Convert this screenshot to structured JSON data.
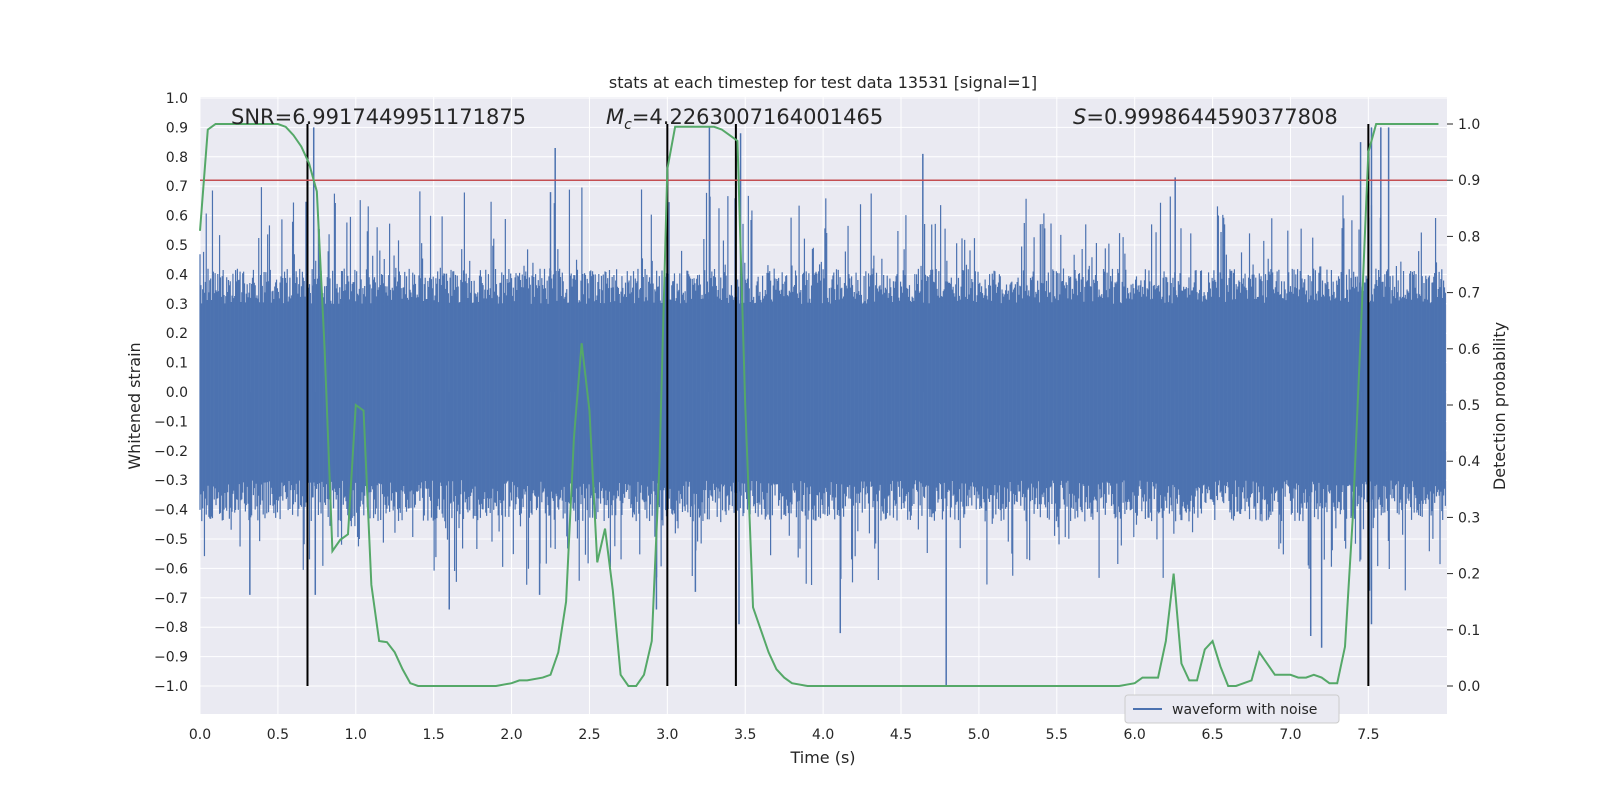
{
  "chart_data": {
    "type": "line",
    "title": "stats at each timestep for test data 13531 [signal=1]",
    "xlabel": "Time (s)",
    "ylabel": "Whitened strain",
    "y2label": "Detection probability",
    "xlim": [
      0.0,
      8.0
    ],
    "ylim": [
      -1.0,
      1.0
    ],
    "y2lim": [
      0.0,
      1.0
    ],
    "xticks": [
      "0.0",
      "0.5",
      "1.0",
      "1.5",
      "2.0",
      "2.5",
      "3.0",
      "3.5",
      "4.0",
      "4.5",
      "5.0",
      "5.5",
      "6.0",
      "6.5",
      "7.0",
      "7.5"
    ],
    "yticks": [
      "1.0",
      "0.9",
      "0.8",
      "0.7",
      "0.6",
      "0.5",
      "0.4",
      "0.3",
      "0.2",
      "0.1",
      "0.0",
      "−0.1",
      "−0.2",
      "−0.3",
      "−0.4",
      "−0.5",
      "−0.6",
      "−0.7",
      "−0.8",
      "−0.9",
      "−1.0"
    ],
    "y2ticks": [
      "1.0",
      "0.9",
      "0.8",
      "0.7",
      "0.6",
      "0.5",
      "0.4",
      "0.3",
      "0.2",
      "0.1",
      "0.0"
    ],
    "grid": true,
    "legend": {
      "entry": "waveform with noise",
      "placement": "lower-center-right"
    },
    "annotations": {
      "snr": "SNR=6.9917449951171875",
      "mc_symbol": "M",
      "mc_sub": "c",
      "mc_value": "=4.2263007164001465",
      "s_symbol": "S",
      "s_value": "=0.9998644590377808"
    },
    "threshold": 0.9,
    "vertical_lines_x": [
      0.69,
      3.0,
      3.44,
      7.5
    ],
    "probability_series": {
      "name": "",
      "x": [
        0.0,
        0.05,
        0.1,
        0.2,
        0.3,
        0.4,
        0.5,
        0.55,
        0.6,
        0.65,
        0.7,
        0.75,
        0.8,
        0.85,
        0.9,
        0.95,
        1.0,
        1.05,
        1.1,
        1.15,
        1.2,
        1.25,
        1.3,
        1.35,
        1.4,
        1.45,
        1.5,
        1.6,
        1.7,
        1.8,
        1.9,
        2.0,
        2.05,
        2.1,
        2.2,
        2.25,
        2.3,
        2.35,
        2.4,
        2.45,
        2.5,
        2.55,
        2.6,
        2.65,
        2.7,
        2.75,
        2.8,
        2.85,
        2.9,
        2.95,
        3.0,
        3.05,
        3.1,
        3.15,
        3.2,
        3.3,
        3.35,
        3.4,
        3.45,
        3.5,
        3.55,
        3.6,
        3.65,
        3.7,
        3.75,
        3.8,
        3.9,
        4.0,
        4.5,
        5.0,
        5.5,
        5.9,
        6.0,
        6.05,
        6.1,
        6.15,
        6.2,
        6.25,
        6.3,
        6.35,
        6.4,
        6.45,
        6.5,
        6.55,
        6.6,
        6.65,
        6.7,
        6.75,
        6.8,
        6.85,
        6.9,
        6.95,
        7.0,
        7.05,
        7.1,
        7.15,
        7.2,
        7.25,
        7.3,
        7.35,
        7.4,
        7.45,
        7.5,
        7.55,
        7.6,
        7.65,
        7.7,
        7.8,
        7.9,
        7.95
      ],
      "y": [
        0.81,
        0.99,
        1.0,
        1.0,
        1.0,
        1.0,
        1.0,
        0.995,
        0.98,
        0.96,
        0.93,
        0.88,
        0.6,
        0.24,
        0.26,
        0.27,
        0.5,
        0.49,
        0.18,
        0.08,
        0.078,
        0.06,
        0.03,
        0.005,
        0.0,
        0.0,
        0.0,
        0.0,
        0.0,
        0.0,
        0.0,
        0.005,
        0.01,
        0.01,
        0.015,
        0.02,
        0.06,
        0.15,
        0.44,
        0.61,
        0.49,
        0.22,
        0.28,
        0.17,
        0.02,
        0.0,
        0.0,
        0.02,
        0.08,
        0.4,
        0.92,
        0.995,
        0.995,
        0.995,
        0.995,
        0.995,
        0.99,
        0.98,
        0.97,
        0.5,
        0.14,
        0.1,
        0.06,
        0.03,
        0.015,
        0.005,
        0.0,
        0.0,
        0.0,
        0.0,
        0.0,
        0.0,
        0.005,
        0.015,
        0.015,
        0.015,
        0.08,
        0.2,
        0.04,
        0.01,
        0.01,
        0.065,
        0.08,
        0.035,
        0.0,
        0.0,
        0.005,
        0.01,
        0.06,
        0.04,
        0.02,
        0.02,
        0.02,
        0.015,
        0.015,
        0.02,
        0.015,
        0.005,
        0.005,
        0.07,
        0.3,
        0.62,
        0.95,
        1.0,
        1.0,
        1.0,
        1.0,
        1.0,
        1.0,
        1.0
      ]
    },
    "waveform_series": {
      "name": "waveform with noise",
      "typical_amplitude": 0.3,
      "spikes": [
        {
          "x": 0.69,
          "y": 0.74
        },
        {
          "x": 0.73,
          "y": 0.9
        },
        {
          "x": 2.28,
          "y": 0.83
        },
        {
          "x": 2.25,
          "y": 0.68
        },
        {
          "x": 3.27,
          "y": 0.9
        },
        {
          "x": 3.47,
          "y": 0.88
        },
        {
          "x": 4.64,
          "y": 0.81
        },
        {
          "x": 6.26,
          "y": 0.73
        },
        {
          "x": 7.45,
          "y": 0.85
        },
        {
          "x": 7.52,
          "y": 0.9
        },
        {
          "x": 7.58,
          "y": 0.9
        },
        {
          "x": 7.63,
          "y": 0.9
        },
        {
          "x": 4.79,
          "y": -1.0
        },
        {
          "x": 0.32,
          "y": -0.69
        },
        {
          "x": 1.6,
          "y": -0.74
        },
        {
          "x": 2.18,
          "y": -0.69
        },
        {
          "x": 2.93,
          "y": -0.74
        },
        {
          "x": 3.46,
          "y": -0.79
        },
        {
          "x": 4.11,
          "y": -0.82
        },
        {
          "x": 7.52,
          "y": -0.79
        },
        {
          "x": 7.13,
          "y": -0.83
        },
        {
          "x": 7.2,
          "y": -0.87
        },
        {
          "x": 0.74,
          "y": -0.69
        },
        {
          "x": 3.18,
          "y": -0.68
        }
      ]
    },
    "colors": {
      "background": "#eaeaf2",
      "grid": "#ffffff",
      "waveform": "#4c72b0",
      "probability": "#55a868",
      "threshold": "#c44e52",
      "vlines": "#000000"
    }
  }
}
